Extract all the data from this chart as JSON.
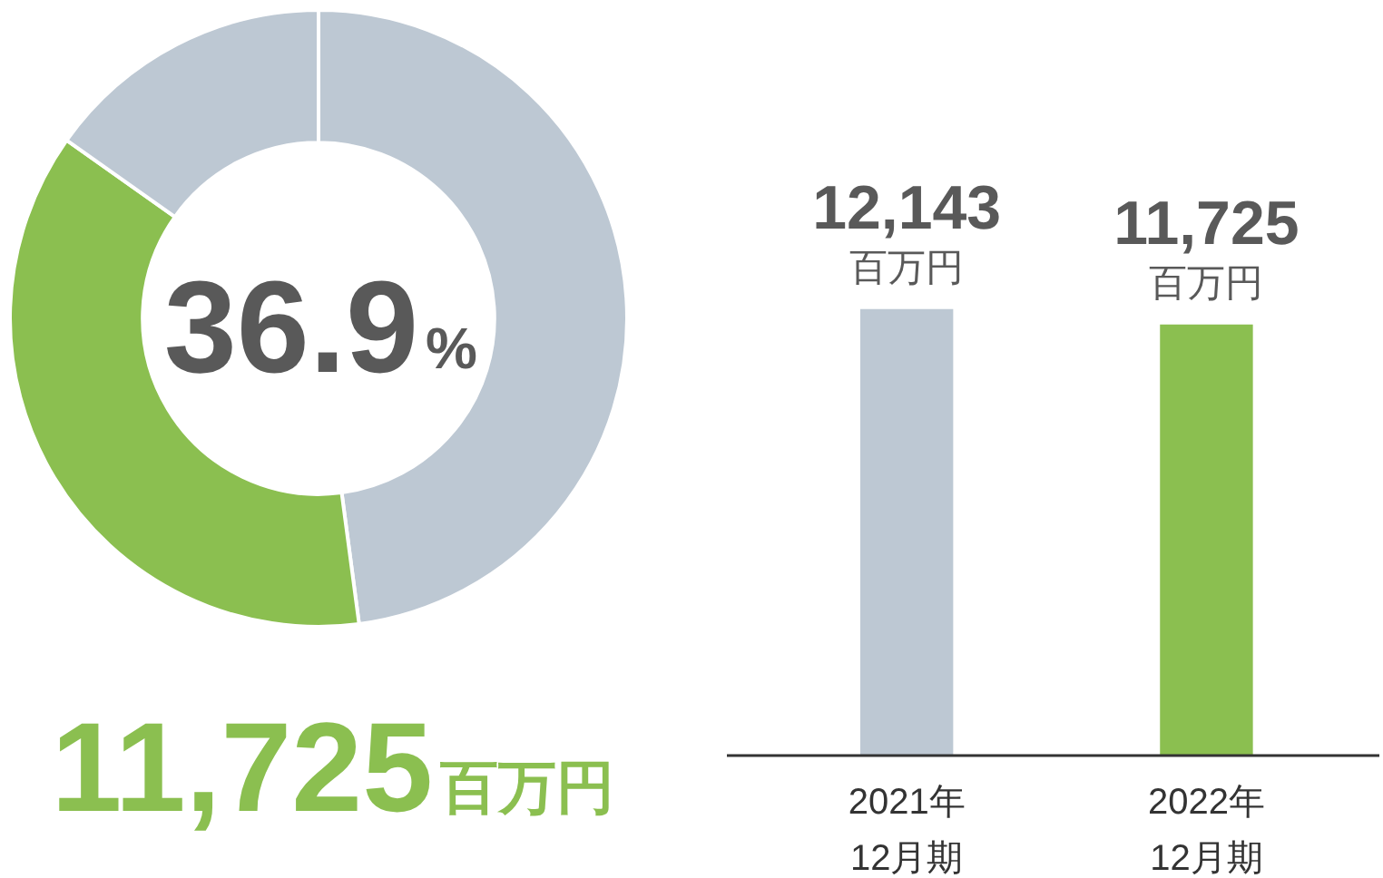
{
  "chart_data": [
    {
      "type": "donut",
      "categories": [
        null,
        null,
        null
      ],
      "values": [
        47.9,
        36.9,
        15.2
      ],
      "colors": [
        "#bdc8d3",
        "#8bbf50",
        "#bdc8d3"
      ],
      "annotations": [
        "36.9%",
        "11,725百万円"
      ]
    },
    {
      "type": "bar",
      "categories": [
        "2021年\n12月期",
        "2022年\n12月期"
      ],
      "values": [
        12143,
        11725
      ],
      "colors": [
        "#bdc8d3",
        "#8bbf50"
      ],
      "value_labels": [
        "12,143\n百万円",
        "11,725\n百万円"
      ],
      "tick_labels": "x"
    }
  ]
}
